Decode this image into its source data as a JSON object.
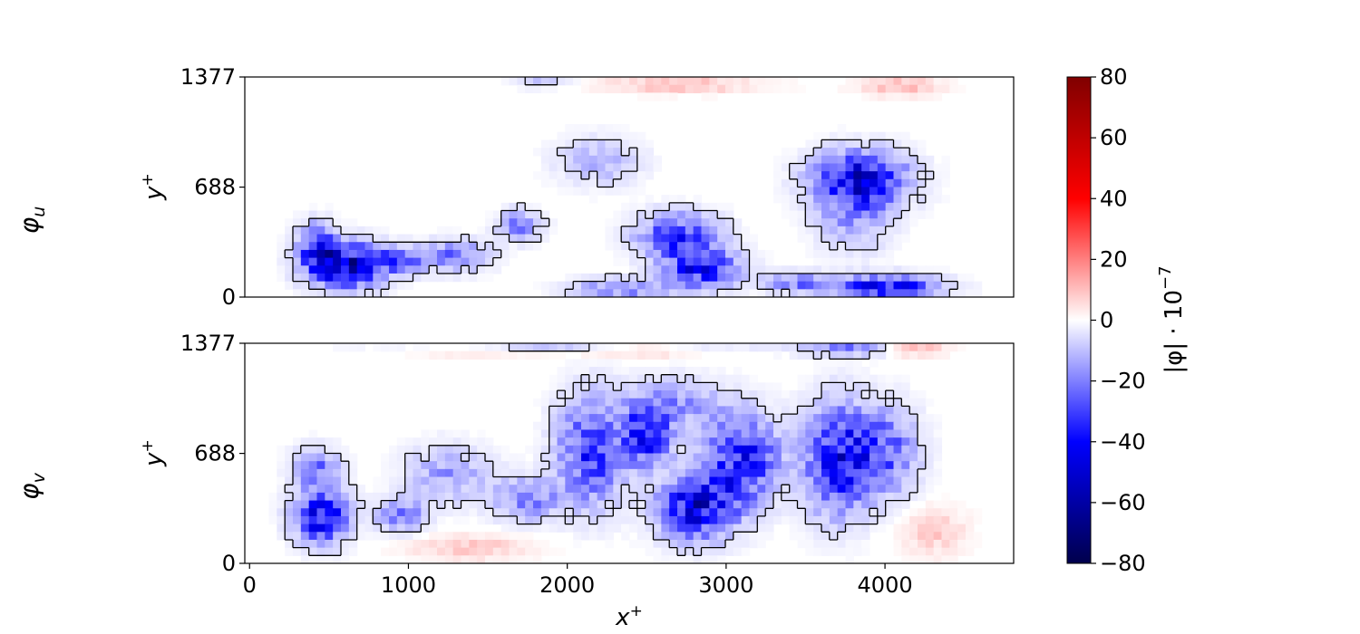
{
  "chart_data": {
    "type": "heatmap",
    "panels": [
      {
        "name": "phi_u",
        "row_label": "φ",
        "row_label_sub": "u",
        "ylabel": "y",
        "ylabel_sup": "+",
        "yticks": [
          0,
          688,
          1377
        ],
        "ylim": [
          0,
          1377
        ],
        "xlim": [
          -30,
          4810
        ],
        "show_xticks": false,
        "blobs": [
          {
            "x": 600,
            "y": 200,
            "rx": 220,
            "ry": 130,
            "v": -55
          },
          {
            "x": 420,
            "y": 330,
            "rx": 110,
            "ry": 130,
            "v": -30
          },
          {
            "x": 950,
            "y": 230,
            "rx": 150,
            "ry": 80,
            "v": -25
          },
          {
            "x": 1300,
            "y": 260,
            "rx": 200,
            "ry": 90,
            "v": -22
          },
          {
            "x": 1700,
            "y": 450,
            "rx": 130,
            "ry": 90,
            "v": -20
          },
          {
            "x": 2200,
            "y": 850,
            "rx": 250,
            "ry": 140,
            "v": -12
          },
          {
            "x": 2700,
            "y": 380,
            "rx": 240,
            "ry": 130,
            "v": -35
          },
          {
            "x": 2850,
            "y": 180,
            "rx": 220,
            "ry": 110,
            "v": -40
          },
          {
            "x": 3850,
            "y": 740,
            "rx": 280,
            "ry": 160,
            "v": -45
          },
          {
            "x": 3800,
            "y": 500,
            "rx": 220,
            "ry": 200,
            "v": -15
          },
          {
            "x": 4000,
            "y": 60,
            "rx": 320,
            "ry": 70,
            "v": -40
          },
          {
            "x": 2350,
            "y": 50,
            "rx": 300,
            "ry": 60,
            "v": -20
          },
          {
            "x": 3450,
            "y": 90,
            "rx": 200,
            "ry": 60,
            "v": -20
          },
          {
            "x": 2700,
            "y": 1330,
            "rx": 500,
            "ry": 50,
            "v": 10
          },
          {
            "x": 4100,
            "y": 1320,
            "rx": 250,
            "ry": 60,
            "v": 10
          },
          {
            "x": 1850,
            "y": 1350,
            "rx": 200,
            "ry": 40,
            "v": -8
          }
        ]
      },
      {
        "name": "phi_v",
        "row_label": "φ",
        "row_label_sub": "v",
        "ylabel": "y",
        "ylabel_sup": "+",
        "yticks": [
          0,
          688,
          1377
        ],
        "ylim": [
          0,
          1377
        ],
        "xlim": [
          -30,
          4810
        ],
        "show_xticks": true,
        "blobs": [
          {
            "x": 450,
            "y": 300,
            "rx": 160,
            "ry": 160,
            "v": -45
          },
          {
            "x": 420,
            "y": 600,
            "rx": 140,
            "ry": 120,
            "v": -20
          },
          {
            "x": 950,
            "y": 300,
            "rx": 150,
            "ry": 100,
            "v": -22
          },
          {
            "x": 1250,
            "y": 560,
            "rx": 250,
            "ry": 170,
            "v": -15
          },
          {
            "x": 1750,
            "y": 400,
            "rx": 200,
            "ry": 130,
            "v": -20
          },
          {
            "x": 2150,
            "y": 700,
            "rx": 200,
            "ry": 320,
            "v": -32
          },
          {
            "x": 2500,
            "y": 800,
            "rx": 150,
            "ry": 180,
            "v": -38
          },
          {
            "x": 2820,
            "y": 350,
            "rx": 230,
            "ry": 190,
            "v": -45
          },
          {
            "x": 3100,
            "y": 650,
            "rx": 220,
            "ry": 250,
            "v": -38
          },
          {
            "x": 2700,
            "y": 1000,
            "rx": 300,
            "ry": 150,
            "v": -15
          },
          {
            "x": 3700,
            "y": 650,
            "rx": 200,
            "ry": 320,
            "v": -40
          },
          {
            "x": 4000,
            "y": 700,
            "rx": 200,
            "ry": 260,
            "v": -25
          },
          {
            "x": 2000,
            "y": 1350,
            "rx": 900,
            "ry": 35,
            "v": -15
          },
          {
            "x": 2400,
            "y": 1340,
            "rx": 400,
            "ry": 40,
            "v": 15
          },
          {
            "x": 3800,
            "y": 1340,
            "rx": 300,
            "ry": 40,
            "v": -20
          },
          {
            "x": 4150,
            "y": 1340,
            "rx": 200,
            "ry": 40,
            "v": 15
          },
          {
            "x": 1500,
            "y": 1340,
            "rx": 500,
            "ry": 40,
            "v": 10
          },
          {
            "x": 4300,
            "y": 200,
            "rx": 200,
            "ry": 150,
            "v": 8
          },
          {
            "x": 1400,
            "y": 100,
            "rx": 400,
            "ry": 80,
            "v": 8
          }
        ]
      }
    ],
    "xlabel": "x",
    "xlabel_sup": "+",
    "xticks": [
      0,
      1000,
      2000,
      3000,
      4000
    ],
    "colorbar": {
      "label": "|φ| · 10",
      "label_exp": "−7",
      "min": -80,
      "max": 80,
      "ticks": [
        -80,
        -60,
        -40,
        -20,
        0,
        20,
        40,
        60,
        80
      ],
      "tick_labels": [
        "−80",
        "−60",
        "−40",
        "−20",
        "0",
        "20",
        "40",
        "60",
        "80"
      ],
      "colormap": "seismic"
    },
    "contour_threshold": -5
  }
}
